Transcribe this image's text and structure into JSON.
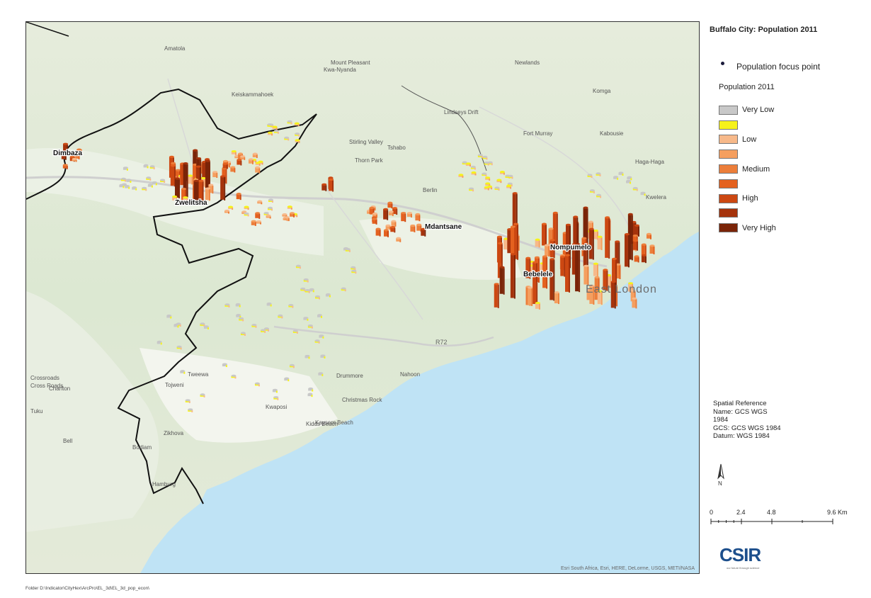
{
  "map": {
    "title": "Buffalo City: Population 2011",
    "attribution": "Esri South Africa, Esri, HERE, DeLorme, USGS, METI/NASA",
    "major_labels": [
      "Dimbaza",
      "Zwelitsha",
      "Mdantsane",
      "Nompumelo",
      "Bebelele"
    ],
    "city_label": "East London",
    "road_label": "R72",
    "places": [
      "Amatola",
      "Keiskammahoek",
      "Mount Pleasant",
      "Tshabo",
      "Berlin",
      "Kidds Beach",
      "Kwelera",
      "Tuku",
      "Bell",
      "Charlton",
      "Tweewa",
      "Tojweni",
      "Kwaposi",
      "Zikhova",
      "Bodiam",
      "Hamburg",
      "Drummore",
      "Christmas Rock",
      "Kaysers Beach",
      "Nahoon",
      "Thorn Park",
      "Stirling Valley",
      "Lindseys Drift",
      "Fort Murray",
      "Komga",
      "Haga-Haga",
      "Kabousie",
      "Crossroads",
      "Newlands",
      "Kwa-Nyanda",
      "Cross Roads"
    ]
  },
  "legend": {
    "focus_point_label": "Population focus point",
    "focus_point_color": "#1a1a3a",
    "title": "Population 2011",
    "classes": [
      {
        "label": "Very Low",
        "color": "#c8c8c8"
      },
      {
        "label": "",
        "color": "#f6f21a"
      },
      {
        "label": "Low",
        "color": "#f7b98a"
      },
      {
        "label": "",
        "color": "#f59f5f"
      },
      {
        "label": "Medium",
        "color": "#ec7e3a"
      },
      {
        "label": "",
        "color": "#e4611f"
      },
      {
        "label": "High",
        "color": "#cc4812"
      },
      {
        "label": "",
        "color": "#a5330c"
      },
      {
        "label": "Very High",
        "color": "#7a2408"
      }
    ]
  },
  "spatial_reference": {
    "heading": "Spatial Reference",
    "name_line_1": "Name: GCS WGS",
    "name_line_2": "1984",
    "gcs": "GCS: GCS WGS 1984",
    "datum": "Datum: WGS 1984"
  },
  "north_label": "N",
  "scale": {
    "ticks": [
      "0",
      "2.4",
      "4.8",
      "9.6 Km"
    ]
  },
  "logo": {
    "text": "CSIR",
    "tagline": "our future through science",
    "brand_color": "#1d4f8c"
  },
  "footer": {
    "folder_path": "Folder D:\\Indicator\\CityHex\\ArcPro\\EL_3d\\EL_3d_pop_econ\\"
  },
  "colors": {
    "land": "#dfe8d4",
    "urban": "#ffffff",
    "sea": "#bfe3f5",
    "boundary": "#111111"
  }
}
